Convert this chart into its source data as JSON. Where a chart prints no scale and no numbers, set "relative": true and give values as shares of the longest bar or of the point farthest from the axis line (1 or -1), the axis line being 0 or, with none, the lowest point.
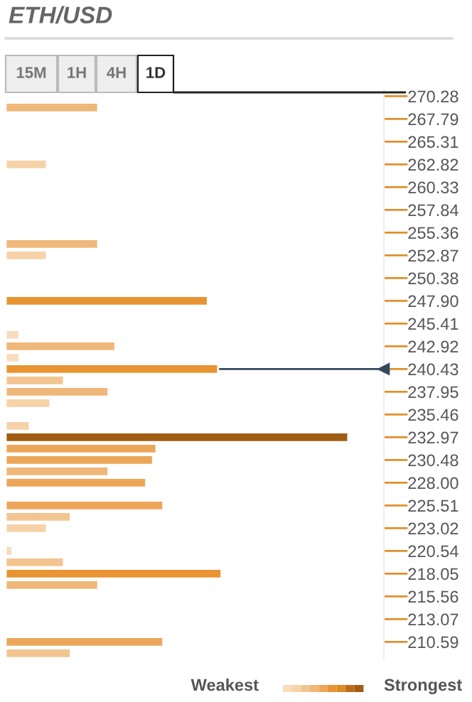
{
  "chart_data": {
    "type": "bar",
    "orientation": "horizontal",
    "relative": true,
    "title": "ETH/USD",
    "categories": [
      "270.28",
      null,
      "267.79",
      null,
      "265.31",
      null,
      "262.82",
      null,
      "260.33",
      null,
      "257.84",
      null,
      "255.36",
      null,
      "252.87",
      null,
      "250.38",
      null,
      "247.90",
      null,
      "245.41",
      null,
      "242.92",
      null,
      "240.43",
      null,
      "237.95",
      null,
      "235.46",
      null,
      "232.97",
      null,
      "230.48",
      null,
      "228.00",
      null,
      "225.51",
      null,
      "223.02",
      null,
      "220.54",
      null,
      "218.05",
      null,
      "215.56",
      null,
      "213.07",
      null,
      "210.59",
      null
    ],
    "values": [
      null,
      0.27,
      null,
      null,
      null,
      null,
      0.12,
      null,
      null,
      null,
      null,
      null,
      null,
      0.27,
      0.12,
      null,
      null,
      null,
      0.59,
      null,
      null,
      0.04,
      0.32,
      0.04,
      0.62,
      0.17,
      0.3,
      0.13,
      null,
      0.07,
      1.0,
      0.44,
      0.43,
      0.3,
      0.41,
      null,
      0.46,
      0.19,
      0.12,
      null,
      0.02,
      0.17,
      0.63,
      0.27,
      null,
      null,
      null,
      null,
      0.46,
      0.19
    ],
    "colors": [
      null,
      "#efb779",
      null,
      null,
      null,
      null,
      "#f6d2a8",
      null,
      null,
      null,
      null,
      null,
      null,
      "#efb779",
      "#f6d2a8",
      null,
      null,
      null,
      "#e89433",
      null,
      null,
      "#f8dcbc",
      "#efb779",
      "#f8dcbc",
      "#e89433",
      "#f2c590",
      "#efb779",
      "#f6d2a8",
      null,
      "#f6d2a8",
      "#a05d13",
      "#eca65a",
      "#eca65a",
      "#efb779",
      "#eca65a",
      null,
      "#eca65a",
      "#f2c590",
      "#f6d2a8",
      null,
      "#f8dcbc",
      "#f2c590",
      "#e89433",
      "#efb779",
      null,
      null,
      null,
      null,
      "#eca65a",
      "#f2c590"
    ],
    "ref_lines": [
      {
        "axis": "y",
        "value": "240.43",
        "color": "#34495e"
      }
    ],
    "annotations": [
      "15M",
      "1H",
      "4H",
      "1D",
      "Weakest",
      "Strongest"
    ],
    "grid": false,
    "legend": false
  }
}
